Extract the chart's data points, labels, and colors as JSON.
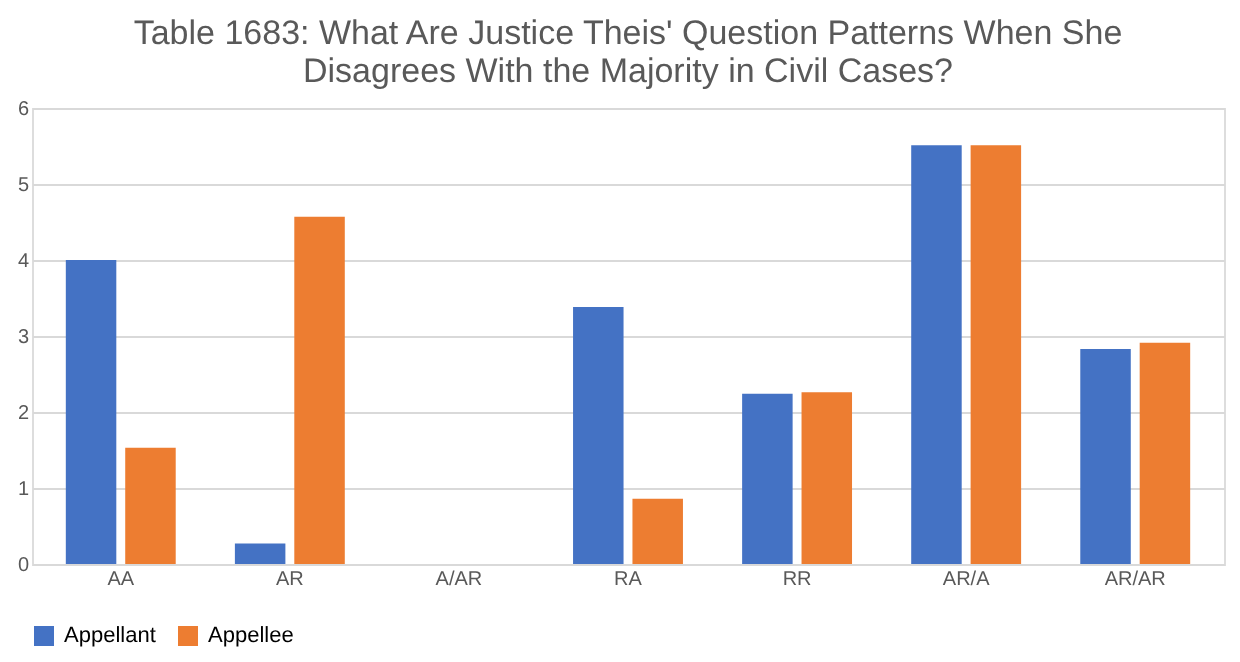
{
  "chart_data": {
    "type": "bar",
    "title": "Table 1683: What Are Justice Theis' Question Patterns When She Disagrees With the Majority in Civil Cases?",
    "categories": [
      "AA",
      "AR",
      "A/AR",
      "RA",
      "RR",
      "AR/A",
      "AR/AR"
    ],
    "series": [
      {
        "name": "Appellant",
        "color": "#4472c4",
        "values": [
          4.0,
          0.27,
          0,
          3.38,
          2.24,
          5.51,
          2.83
        ]
      },
      {
        "name": "Appellee",
        "color": "#ed7d31",
        "values": [
          1.53,
          4.57,
          0,
          0.86,
          2.26,
          5.51,
          2.91
        ]
      }
    ],
    "ylim": [
      0,
      6
    ],
    "yticks": [
      0,
      1,
      2,
      3,
      4,
      5,
      6
    ],
    "grid": "y",
    "legend": "bottom"
  }
}
